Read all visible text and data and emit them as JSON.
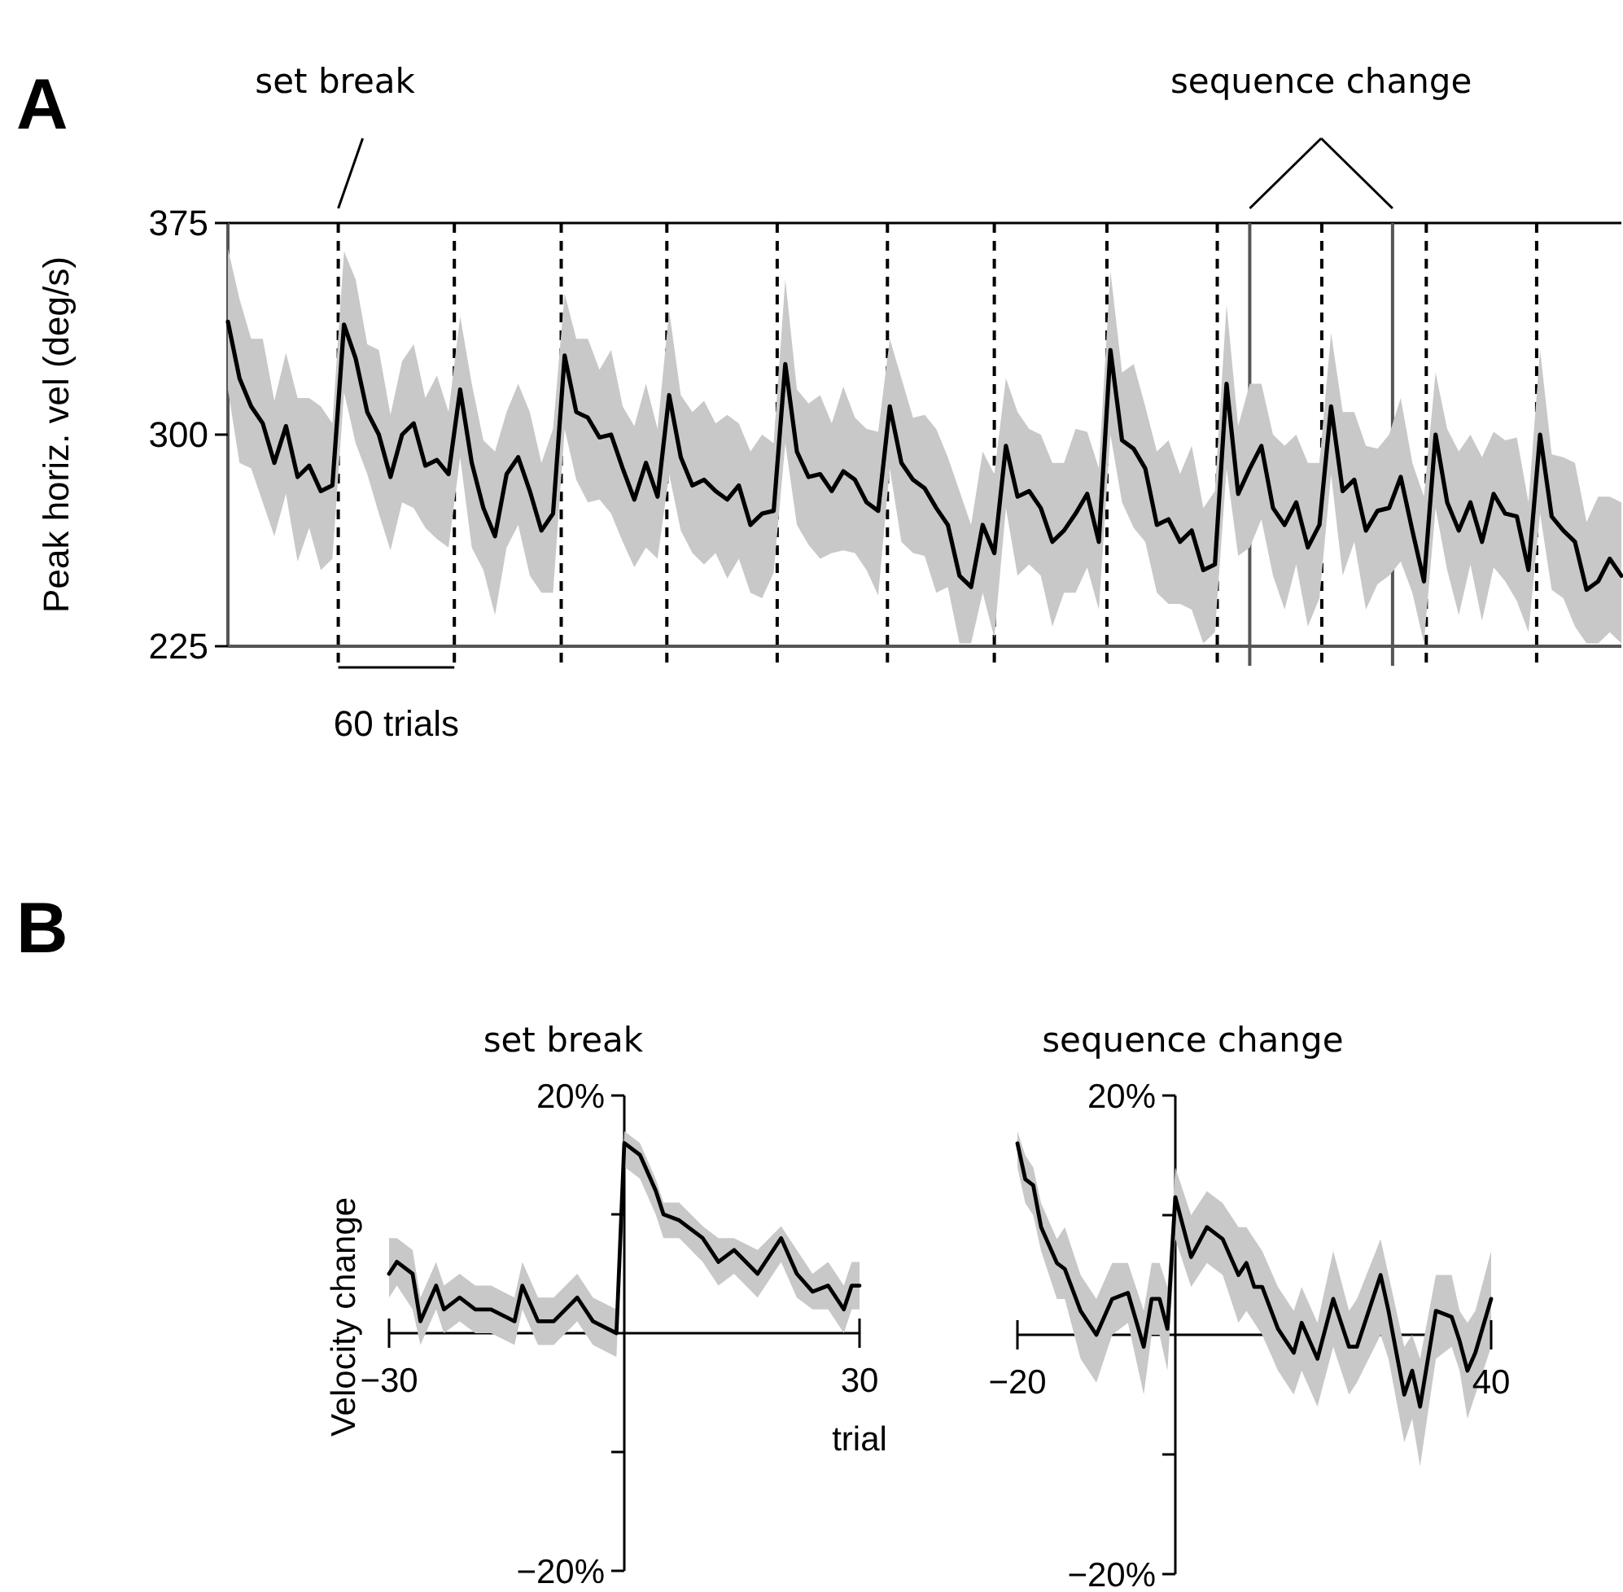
{
  "chart_data": [
    {
      "type": "line",
      "ylabel": "Peak horiz. vel (deg/s)",
      "ylim": [
        225,
        375
      ],
      "yticks": [
        225,
        300,
        375
      ],
      "tick_labels": "y",
      "line_style": "solid",
      "categories": [
        null,
        null,
        null,
        null,
        null,
        null,
        null,
        null,
        null,
        null,
        null,
        null,
        null,
        null,
        null,
        null,
        null,
        null,
        null,
        null,
        null,
        null,
        null,
        null,
        null,
        null,
        null,
        null,
        null,
        null,
        null,
        null,
        null,
        null,
        null,
        null,
        null,
        null,
        null,
        null,
        null,
        null,
        null,
        null,
        null,
        null,
        null,
        null,
        null,
        null,
        null,
        null,
        null,
        null,
        null,
        null,
        null,
        null,
        null,
        null,
        null,
        null,
        null,
        null,
        null,
        null,
        null,
        null,
        null,
        null,
        null,
        null,
        null,
        null,
        null,
        null,
        null,
        null,
        null,
        null,
        null,
        null,
        null,
        null,
        null,
        null,
        null,
        null,
        null,
        null,
        null,
        null,
        null,
        null,
        null,
        null,
        null,
        null,
        null,
        null,
        null,
        null,
        null,
        null,
        null,
        null,
        null,
        null,
        null,
        null,
        null,
        null,
        null,
        null,
        null,
        null,
        null,
        null,
        null,
        null,
        null
      ],
      "series": [
        {
          "color": "#000000",
          "values": [
            340,
            320,
            310,
            304,
            290,
            303,
            285,
            289,
            280,
            282,
            339,
            327,
            308,
            300,
            285,
            300,
            304,
            289,
            291,
            286,
            316,
            290,
            274,
            264,
            286,
            292,
            280,
            266,
            272,
            328,
            308,
            306,
            299,
            300,
            288,
            277,
            290,
            278,
            314,
            292,
            282,
            284,
            280,
            277,
            282,
            268,
            272,
            273,
            325,
            294,
            285,
            286,
            280,
            287,
            284,
            276,
            273,
            310,
            290,
            284,
            281,
            274,
            268,
            250,
            246,
            268,
            258,
            296,
            278,
            280,
            274,
            262,
            266,
            272,
            279,
            262,
            330,
            298,
            295,
            288,
            268,
            270,
            262,
            266,
            252,
            254,
            318,
            279,
            288,
            296,
            274,
            268,
            276,
            260,
            268,
            310,
            280,
            284,
            266,
            273,
            274,
            285,
            266,
            248,
            300,
            276,
            266,
            276,
            262,
            279,
            272,
            271,
            252,
            300,
            271,
            266,
            262,
            245,
            248,
            256,
            250
          ],
          "upper": [
            366,
            348,
            334,
            334,
            312,
            329,
            313,
            313,
            310,
            304,
            365,
            355,
            332,
            330,
            307,
            326,
            332,
            313,
            321,
            308,
            342,
            318,
            298,
            294,
            308,
            318,
            308,
            290,
            302,
            350,
            334,
            334,
            323,
            330,
            310,
            303,
            318,
            302,
            344,
            314,
            308,
            312,
            304,
            307,
            304,
            294,
            300,
            297,
            355,
            316,
            311,
            314,
            304,
            317,
            306,
            302,
            301,
            334,
            320,
            306,
            307,
            302,
            292,
            280,
            268,
            294,
            286,
            320,
            308,
            302,
            300,
            290,
            290,
            302,
            301,
            288,
            358,
            322,
            325,
            310,
            294,
            298,
            286,
            296,
            274,
            280,
            346,
            303,
            318,
            318,
            300,
            296,
            300,
            290,
            290,
            336,
            308,
            308,
            296,
            295,
            300,
            313,
            290,
            278,
            322,
            302,
            294,
            300,
            292,
            301,
            298,
            299,
            276,
            330,
            293,
            292,
            290,
            269,
            278,
            278,
            276
          ],
          "lower": [
            316,
            290,
            288,
            276,
            264,
            279,
            255,
            267,
            252,
            256,
            315,
            297,
            286,
            272,
            259,
            276,
            274,
            267,
            263,
            260,
            292,
            260,
            252,
            236,
            260,
            268,
            250,
            244,
            244,
            302,
            284,
            276,
            277,
            272,
            262,
            253,
            260,
            256,
            286,
            266,
            258,
            254,
            258,
            249,
            256,
            244,
            242,
            251,
            297,
            268,
            261,
            256,
            258,
            259,
            258,
            252,
            243,
            288,
            262,
            258,
            257,
            244,
            246,
            226,
            226,
            244,
            228,
            274,
            250,
            254,
            250,
            232,
            244,
            244,
            253,
            238,
            300,
            276,
            267,
            262,
            244,
            240,
            240,
            238,
            226,
            230,
            288,
            257,
            260,
            270,
            250,
            238,
            254,
            232,
            242,
            286,
            250,
            262,
            238,
            247,
            250,
            255,
            244,
            226,
            274,
            252,
            236,
            254,
            234,
            253,
            248,
            241,
            230,
            272,
            245,
            242,
            232,
            226,
            226,
            230,
            226
          ]
        }
      ],
      "annotations": [
        "A",
        "set break",
        "sequence change",
        "60 trials"
      ]
    },
    {
      "type": "line",
      "title": "set break",
      "xlabel": "trial",
      "ylabel": "Velocity change",
      "xlim": [
        -30,
        30
      ],
      "ylim": [
        -20,
        20
      ],
      "xticks": [
        {
          "value": -30,
          "label": "−30"
        },
        30
      ],
      "yticks": [
        {
          "value": -20,
          "label": "−20%"
        },
        {
          "value": -10,
          "label": null
        },
        {
          "value": 10,
          "label": null
        },
        {
          "value": 20,
          "label": "20%"
        }
      ],
      "line_style": "solid",
      "x": [
        -30,
        -29,
        -27,
        -26,
        -24,
        -23,
        -21,
        -19,
        -17,
        -14,
        -13,
        -11,
        -9,
        -6,
        -4,
        -1,
        0,
        2,
        4,
        5,
        7,
        10,
        12,
        14,
        17,
        20,
        22,
        24,
        26,
        28,
        29,
        30
      ],
      "series": [
        {
          "color": "#000000",
          "values": [
            5,
            6,
            5,
            1,
            4,
            2,
            3,
            2,
            2,
            1,
            4,
            1,
            1,
            3,
            1,
            0,
            16,
            15,
            12,
            10,
            9.5,
            8,
            6,
            7,
            5,
            8,
            5,
            3.5,
            4,
            2,
            4,
            4
          ],
          "upper": [
            8,
            8,
            7,
            3,
            6,
            4,
            5,
            4,
            4,
            3,
            6,
            3,
            3,
            5,
            3,
            2,
            17,
            16,
            13,
            11,
            11,
            9,
            8,
            8,
            7,
            9,
            7,
            5,
            6,
            4,
            6,
            6
          ],
          "lower": [
            3,
            4,
            2,
            -1,
            2,
            0,
            1,
            0,
            0,
            -1,
            2,
            -1,
            -1,
            1,
            -1,
            -2,
            14,
            13,
            10,
            8,
            8,
            6,
            4,
            5,
            3,
            6,
            3,
            2,
            2,
            0,
            2,
            2
          ]
        }
      ],
      "annotations": [
        "B"
      ]
    },
    {
      "type": "line",
      "title": "sequence change",
      "xlim": [
        -20,
        40
      ],
      "ylim": [
        -20,
        20
      ],
      "xticks": [
        {
          "value": -20,
          "label": "−20"
        },
        40
      ],
      "yticks": [
        {
          "value": -20,
          "label": "−20%"
        },
        {
          "value": -10,
          "label": null
        },
        {
          "value": 10,
          "label": null
        },
        {
          "value": 20,
          "label": "20%"
        }
      ],
      "line_style": "solid",
      "x": [
        -20,
        -19,
        -18,
        -17,
        -15,
        -14,
        -12,
        -10,
        -8,
        -6,
        -4,
        -3,
        -2,
        -1,
        0,
        2,
        4,
        6,
        8,
        9,
        10,
        11,
        13,
        15,
        16,
        18,
        20,
        22,
        23,
        26,
        27,
        29,
        30,
        31,
        33,
        35,
        36,
        37,
        38,
        40
      ],
      "series": [
        {
          "color": "#000000",
          "values": [
            16,
            13,
            12.5,
            9,
            6,
            5.5,
            2,
            0,
            3,
            3.5,
            -1,
            3,
            3,
            0.5,
            11.5,
            6.5,
            9,
            8,
            5,
            6,
            4,
            4,
            0.5,
            -1.5,
            1,
            -2,
            3,
            -1,
            -1,
            5,
            2,
            -5,
            -3,
            -6,
            2,
            1.5,
            -0.5,
            -3,
            -1.5,
            3
          ],
          "upper": [
            17,
            15,
            14,
            11,
            8,
            9,
            5,
            3,
            6,
            6,
            2,
            6,
            6,
            4,
            14,
            10,
            12,
            11,
            9,
            9,
            8,
            7,
            4,
            2,
            4,
            1,
            7,
            2,
            3,
            8,
            5,
            -1,
            0,
            -2,
            5,
            5,
            2,
            1,
            2,
            7
          ],
          "lower": [
            14,
            11,
            10,
            7,
            3,
            3,
            -2,
            -4,
            0,
            1,
            -5,
            0,
            0,
            -3,
            8,
            4,
            6,
            5,
            1,
            2,
            1,
            0,
            -3,
            -5,
            -3,
            -6,
            -1,
            -5,
            -4,
            0,
            -2,
            -9,
            -7,
            -11,
            -2,
            -1,
            -3,
            -7,
            -5,
            -1
          ]
        }
      ]
    }
  ]
}
